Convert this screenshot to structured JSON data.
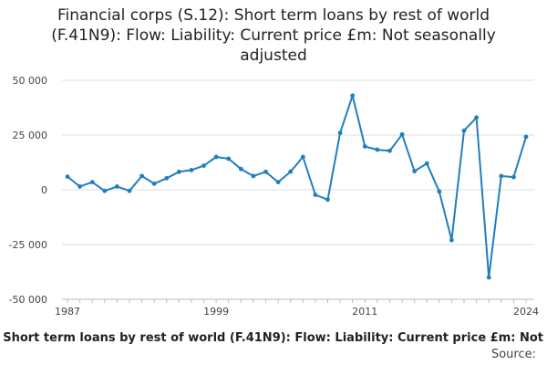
{
  "title_lines": [
    "Financial corps (S.12): Short term loans by rest of world",
    "(F.41N9): Flow: Liability: Current price £m: Not seasonally",
    "adjusted"
  ],
  "caption": "Financial corps (S.12): Short term loans by rest of world (F.41N9): Flow: Liability: Current price £m: Not",
  "source": "Source:",
  "line_color": "#1f7fbd",
  "chart_data": {
    "type": "line",
    "title": "Financial corps (S.12): Short term loans by rest of world (F.41N9): Flow: Liability: Current price £m: Not seasonally adjusted",
    "xlabel": "",
    "ylabel": "",
    "xlim": [
      1987,
      2024
    ],
    "ylim": [
      -50000,
      50000
    ],
    "x_ticks": [
      "1987",
      "1999",
      "2011",
      "2024"
    ],
    "y_ticks": [
      "50 000",
      "25 000",
      "0",
      "-25 000",
      "-50 000"
    ],
    "grid": "horizontal",
    "x": [
      1987,
      1988,
      1989,
      1990,
      1991,
      1992,
      1993,
      1994,
      1995,
      1996,
      1997,
      1998,
      1999,
      2000,
      2001,
      2002,
      2003,
      2004,
      2005,
      2006,
      2007,
      2008,
      2009,
      2010,
      2011,
      2012,
      2013,
      2014,
      2015,
      2016,
      2017,
      2018,
      2019,
      2020,
      2021,
      2022,
      2023,
      2024
    ],
    "series": [
      {
        "values": [
          6000,
          1500,
          3500,
          -500,
          1500,
          -500,
          6300,
          2800,
          5300,
          8200,
          9000,
          11000,
          15000,
          14200,
          9500,
          6300,
          8200,
          3500,
          8300,
          15000,
          -2300,
          -4500,
          26000,
          43000,
          19800,
          18300,
          17800,
          25300,
          8500,
          12000,
          -800,
          -23000,
          27000,
          33000,
          -40000,
          6300,
          5800,
          24200
        ]
      }
    ]
  }
}
